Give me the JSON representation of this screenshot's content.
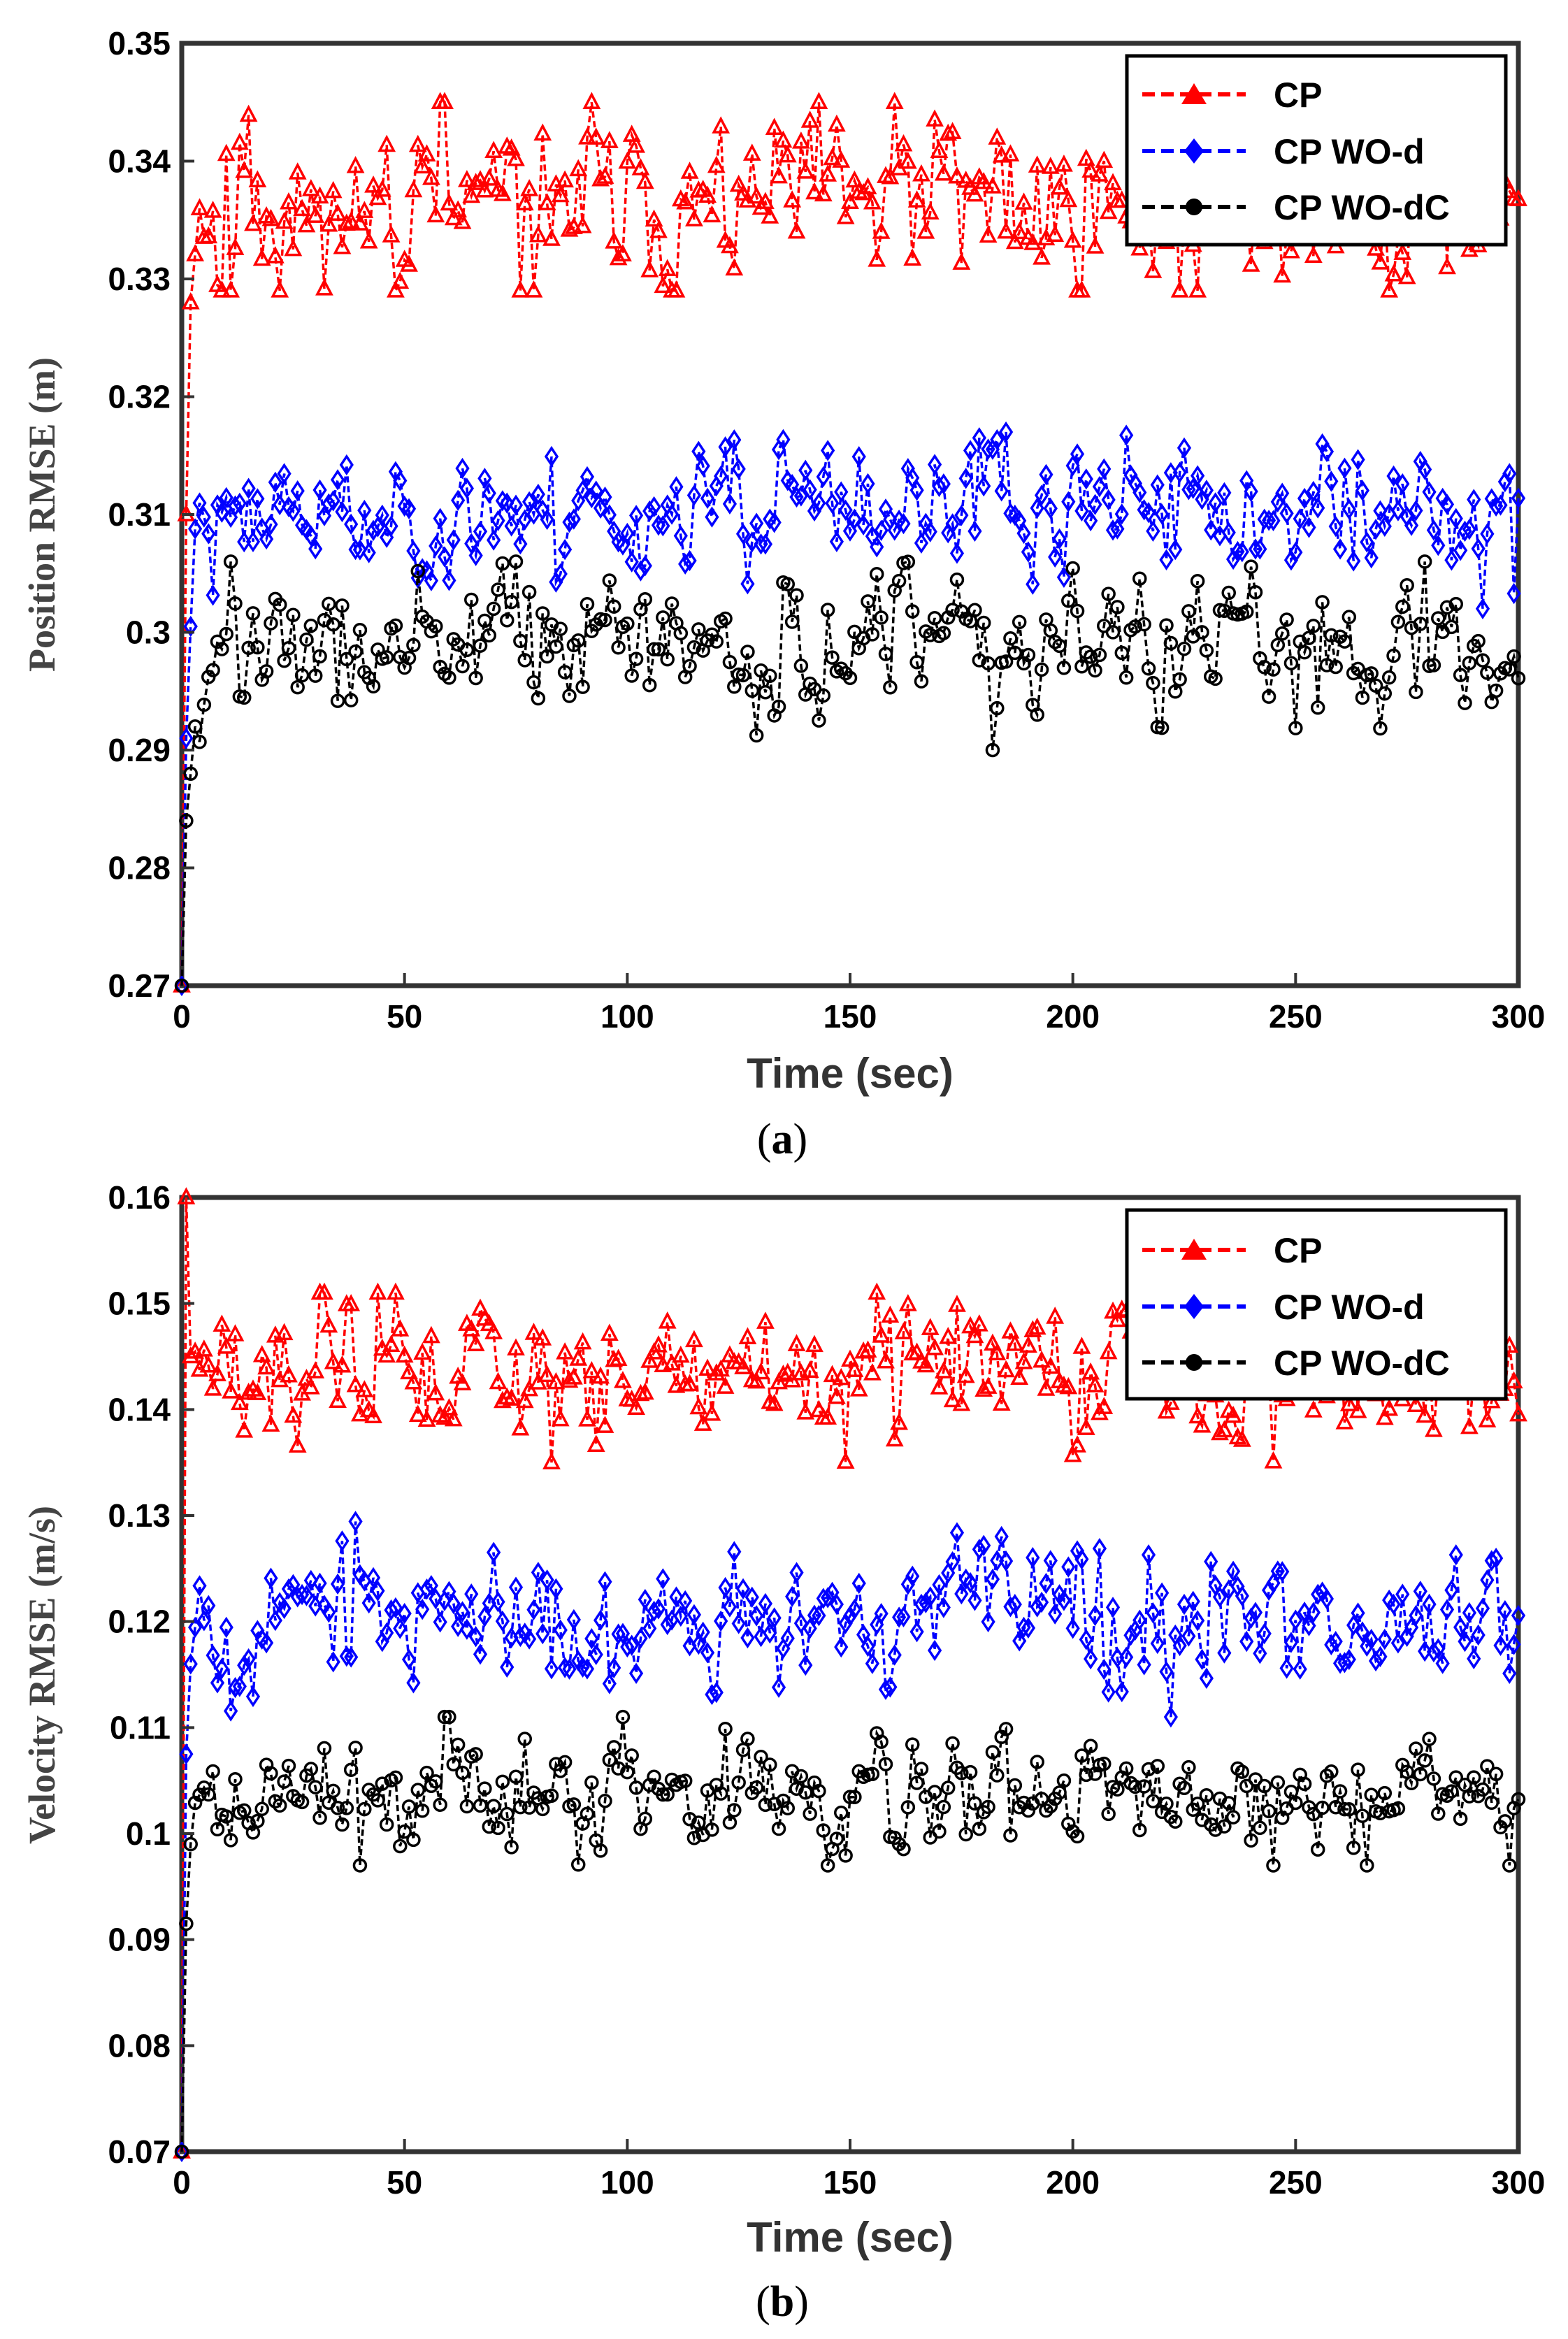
{
  "chart_data": [
    {
      "type": "line",
      "panel": "(a)",
      "caption_open": "(",
      "caption_letter": "a",
      "caption_close": ")",
      "xlabel": "Time (sec)",
      "ylabel": "Position RMSE (m)",
      "xlim": [
        0,
        300
      ],
      "ylim": [
        0.27,
        0.35
      ],
      "xticks": [
        0,
        50,
        100,
        150,
        200,
        250,
        300
      ],
      "xtick_labels": [
        "0",
        "50",
        "100",
        "150",
        "200",
        "250",
        "300"
      ],
      "yticks": [
        0.27,
        0.28,
        0.29,
        0.3,
        0.31,
        0.32,
        0.33,
        0.34,
        0.35
      ],
      "ytick_labels": [
        "0.27",
        "0.28",
        "0.29",
        "0.3",
        "0.31",
        "0.32",
        "0.33",
        "0.34",
        "0.35"
      ],
      "legend_position": "top-right",
      "series": [
        {
          "name": "CP",
          "color": "#ff0000",
          "marker": "triangle",
          "initial": [
            0.27,
            0.31,
            0.328
          ],
          "level": 0.3365,
          "spread": 0.0035,
          "min": 0.329,
          "max": 0.345,
          "seed": 11
        },
        {
          "name": "CP WO-d",
          "color": "#0000ff",
          "marker": "diamond",
          "initial": [
            0.27,
            0.291,
            0.3005
          ],
          "level": 0.3102,
          "spread": 0.0022,
          "min": 0.302,
          "max": 0.317,
          "seed": 23
        },
        {
          "name": "CP WO-dC",
          "color": "#000000",
          "marker": "circle",
          "initial": [
            0.27,
            0.284,
            0.288,
            0.292
          ],
          "level": 0.2985,
          "spread": 0.0025,
          "min": 0.29,
          "max": 0.306,
          "seed": 37
        }
      ]
    },
    {
      "type": "line",
      "panel": "(b)",
      "caption_open": "(",
      "caption_letter": "b",
      "caption_close": ")",
      "xlabel": "Time (sec)",
      "ylabel": "Velocity RMSE (m/s)",
      "xlim": [
        0,
        300
      ],
      "ylim": [
        0.07,
        0.16
      ],
      "xticks": [
        0,
        50,
        100,
        150,
        200,
        250,
        300
      ],
      "xtick_labels": [
        "0",
        "50",
        "100",
        "150",
        "200",
        "250",
        "300"
      ],
      "yticks": [
        0.07,
        0.08,
        0.09,
        0.1,
        0.11,
        0.12,
        0.13,
        0.14,
        0.15,
        0.16
      ],
      "ytick_labels": [
        "0.07",
        "0.08",
        "0.09",
        "0.1",
        "0.11",
        "0.12",
        "0.13",
        "0.14",
        "0.15",
        "0.16"
      ],
      "legend_position": "top-right",
      "series": [
        {
          "name": "CP",
          "color": "#ff0000",
          "marker": "triangle",
          "initial": [
            0.07,
            0.16,
            0.145
          ],
          "level": 0.1432,
          "spread": 0.0028,
          "min": 0.135,
          "max": 0.151,
          "seed": 51
        },
        {
          "name": "CP WO-d",
          "color": "#0000ff",
          "marker": "diamond",
          "initial": [
            0.07,
            0.1075,
            0.116
          ],
          "level": 0.1205,
          "spread": 0.0028,
          "min": 0.111,
          "max": 0.1295,
          "seed": 67
        },
        {
          "name": "CP WO-dC",
          "color": "#000000",
          "marker": "circle",
          "initial": [
            0.07,
            0.0915,
            0.099
          ],
          "level": 0.1035,
          "spread": 0.0025,
          "min": 0.097,
          "max": 0.111,
          "seed": 89
        }
      ]
    }
  ]
}
